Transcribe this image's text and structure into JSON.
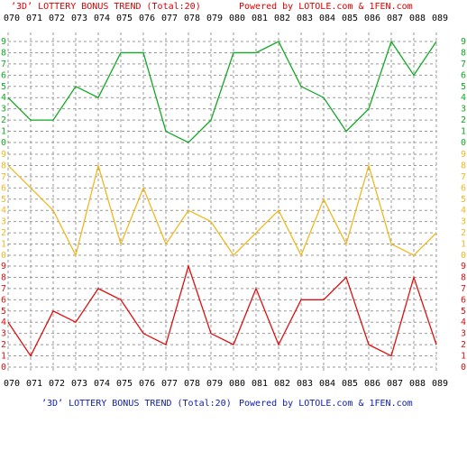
{
  "chart_data": {
    "type": "line",
    "title": "’3D’ LOTTERY BONUS TREND (Total:20)",
    "credit": "Powered by LOTOLE.com & 1FEN.com",
    "categories": [
      "070",
      "071",
      "072",
      "073",
      "074",
      "075",
      "076",
      "077",
      "078",
      "079",
      "080",
      "081",
      "082",
      "083",
      "084",
      "085",
      "086",
      "087",
      "088",
      "089"
    ],
    "series": [
      {
        "color": "#11aa22",
        "values": [
          4,
          2,
          2,
          5,
          4,
          8,
          8,
          1,
          0,
          2,
          8,
          8,
          9,
          5,
          4,
          1,
          3,
          9,
          6,
          9
        ]
      },
      {
        "color": "#f0b820",
        "values": [
          8,
          6,
          4,
          0,
          8,
          1,
          6,
          1,
          4,
          3,
          0,
          2,
          4,
          0,
          5,
          1,
          8,
          1,
          0,
          2
        ]
      },
      {
        "color": "#dd1111",
        "values": [
          4,
          1,
          5,
          4,
          7,
          6,
          3,
          2,
          9,
          3,
          2,
          7,
          2,
          6,
          6,
          8,
          2,
          1,
          8,
          2
        ]
      }
    ],
    "ylim": [
      0,
      9
    ],
    "yticks": [
      0,
      1,
      2,
      3,
      4,
      5,
      6,
      7,
      8,
      9
    ],
    "grid": true
  }
}
